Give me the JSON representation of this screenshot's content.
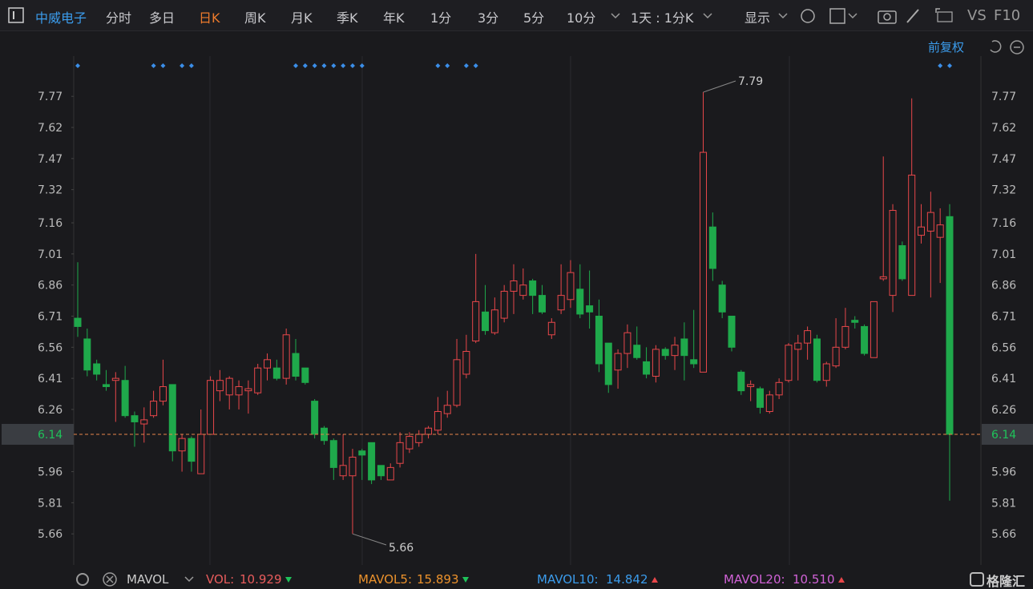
{
  "toolbar": {
    "stock": "中威电子",
    "tabs": [
      "分时",
      "多日",
      "日K",
      "周K",
      "月K",
      "季K",
      "年K",
      "1分",
      "3分",
      "5分",
      "10分"
    ],
    "period": "1天 : 1分K",
    "display": "显示",
    "vs": "VS",
    "f10": "F10",
    "adjust": "前复权"
  },
  "chart_data": {
    "type": "candlestick",
    "open": [
      6.7,
      6.6,
      6.48,
      6.38,
      6.4,
      6.4,
      6.23,
      6.19,
      6.23,
      6.3,
      6.38,
      6.06,
      6.12,
      5.95,
      6.14,
      6.35,
      6.33,
      6.33,
      6.35,
      6.34,
      6.46,
      6.46,
      6.41,
      6.53,
      6.46,
      6.3,
      6.17,
      6.11,
      5.94,
      5.94,
      6.06,
      6.1,
      5.99,
      5.92,
      6.0,
      6.07,
      6.1,
      6.14,
      6.16,
      6.24,
      6.28,
      6.43,
      6.59,
      6.73,
      6.63,
      6.7,
      6.83,
      6.81,
      6.88,
      6.81,
      6.62,
      6.74,
      6.79,
      6.84,
      6.76,
      6.71,
      6.58,
      6.45,
      6.53,
      6.57,
      6.49,
      6.42,
      6.55,
      6.52,
      6.6,
      6.5,
      6.44,
      7.14,
      6.86,
      6.71,
      6.44,
      6.37,
      6.36,
      6.25,
      6.33,
      6.4,
      6.55,
      6.58,
      6.6,
      6.4,
      6.47,
      6.56,
      6.69,
      6.66,
      6.51,
      6.89,
      6.81,
      7.05,
      6.81,
      7.1,
      7.12,
      7.09,
      7.19
    ],
    "high": [
      6.97,
      6.65,
      6.5,
      6.45,
      6.44,
      6.47,
      6.25,
      6.27,
      6.35,
      6.5,
      6.38,
      6.14,
      6.13,
      6.26,
      6.42,
      6.45,
      6.42,
      6.4,
      6.4,
      6.48,
      6.53,
      6.5,
      6.65,
      6.6,
      6.46,
      6.31,
      6.18,
      6.12,
      6.14,
      6.07,
      6.07,
      6.1,
      5.99,
      6.0,
      6.15,
      6.15,
      6.16,
      6.18,
      6.32,
      6.35,
      6.6,
      6.62,
      7.01,
      6.86,
      6.8,
      6.86,
      6.96,
      6.94,
      6.89,
      6.86,
      6.7,
      6.96,
      6.98,
      6.96,
      6.93,
      6.79,
      6.58,
      6.55,
      6.67,
      6.66,
      6.56,
      6.57,
      6.56,
      6.61,
      6.68,
      6.74,
      7.79,
      7.21,
      6.88,
      6.71,
      6.45,
      6.4,
      6.37,
      6.35,
      6.41,
      6.58,
      6.62,
      6.66,
      6.62,
      6.49,
      6.7,
      6.75,
      6.71,
      6.67,
      6.78,
      7.48,
      7.25,
      7.07,
      7.76,
      7.25,
      7.31,
      7.23,
      7.25
    ],
    "low": [
      6.61,
      6.42,
      6.4,
      6.35,
      6.2,
      6.22,
      6.08,
      6.1,
      6.22,
      6.28,
      6.01,
      5.96,
      5.96,
      5.95,
      6.14,
      6.3,
      6.26,
      6.26,
      6.24,
      6.33,
      6.4,
      6.4,
      6.38,
      6.4,
      6.38,
      6.12,
      6.09,
      5.92,
      5.92,
      5.66,
      5.92,
      5.9,
      5.92,
      5.92,
      5.98,
      6.05,
      6.08,
      6.12,
      6.14,
      6.22,
      6.27,
      6.41,
      6.58,
      6.62,
      6.62,
      6.68,
      6.72,
      6.79,
      6.72,
      6.72,
      6.6,
      6.72,
      6.75,
      6.7,
      6.65,
      6.44,
      6.34,
      6.36,
      6.46,
      6.5,
      6.41,
      6.39,
      6.5,
      6.45,
      6.4,
      6.46,
      6.44,
      6.88,
      6.7,
      6.54,
      6.33,
      6.3,
      6.24,
      6.24,
      6.31,
      6.39,
      6.4,
      6.5,
      6.39,
      6.37,
      6.46,
      6.55,
      6.65,
      6.52,
      6.51,
      6.88,
      6.73,
      6.88,
      6.81,
      7.06,
      6.8,
      6.87,
      5.82
    ],
    "close": [
      6.66,
      6.45,
      6.43,
      6.37,
      6.41,
      6.23,
      6.2,
      6.21,
      6.3,
      6.37,
      6.06,
      6.12,
      6.01,
      6.14,
      6.4,
      6.4,
      6.41,
      6.37,
      6.36,
      6.46,
      6.5,
      6.41,
      6.62,
      6.42,
      6.39,
      6.14,
      6.11,
      5.98,
      5.99,
      6.03,
      6.04,
      5.92,
      5.94,
      5.98,
      6.1,
      6.13,
      6.14,
      6.17,
      6.25,
      6.28,
      6.5,
      6.54,
      6.78,
      6.64,
      6.74,
      6.83,
      6.88,
      6.86,
      6.81,
      6.73,
      6.68,
      6.81,
      6.92,
      6.72,
      6.73,
      6.48,
      6.38,
      6.53,
      6.63,
      6.51,
      6.43,
      6.55,
      6.52,
      6.57,
      6.52,
      6.48,
      7.5,
      6.94,
      6.73,
      6.56,
      6.35,
      6.38,
      6.27,
      6.33,
      6.39,
      6.57,
      6.58,
      6.64,
      6.4,
      6.48,
      6.56,
      6.66,
      6.68,
      6.53,
      6.78,
      6.9,
      7.22,
      6.89,
      7.39,
      7.14,
      7.21,
      7.15,
      6.14
    ],
    "up_color": "#e8474a",
    "down_color": "#1fa94b",
    "ylim": [
      5.51,
      8.08
    ],
    "yticks": [
      7.77,
      7.62,
      7.47,
      7.32,
      7.16,
      7.01,
      6.86,
      6.71,
      6.56,
      6.41,
      6.26,
      5.96,
      5.81,
      5.66
    ],
    "last_price": 6.14,
    "max_index": 66,
    "min_index": 29
  },
  "footer": {
    "indicator": "MAVOL",
    "items": [
      {
        "name": "VOL:",
        "value": "10.929",
        "color": "#e85c5c",
        "dir": "down"
      },
      {
        "name": "MAVOL5:",
        "value": "15.893",
        "color": "#ec922c",
        "dir": "down"
      },
      {
        "name": "MAVOL10:",
        "value": "14.842",
        "color": "#3b9cec",
        "dir": "up"
      },
      {
        "name": "MAVOL20:",
        "value": "10.510",
        "color": "#d062d6",
        "dir": "up"
      }
    ],
    "logo": "格隆汇"
  }
}
